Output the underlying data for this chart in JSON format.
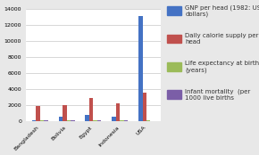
{
  "categories": [
    "Bangladesh",
    "Bolivia",
    "Egypt",
    "Indonesia",
    "USA"
  ],
  "series": [
    {
      "label": "GNP per head (1982: US\ndollars)",
      "color": "#4472C4",
      "values": [
        130,
        570,
        700,
        560,
        13160
      ]
    },
    {
      "label": "Daily calorie supply per\nhead",
      "color": "#C0504D",
      "values": [
        1900,
        2000,
        2900,
        2200,
        3500
      ]
    },
    {
      "label": "Life expectancy at birth\n(years)",
      "color": "#9BBB59",
      "values": [
        50,
        53,
        57,
        55,
        75
      ]
    },
    {
      "label": "Infant mortality  (per\n1000 live births",
      "color": "#7B5EA7",
      "values": [
        132,
        124,
        82,
        87,
        12
      ]
    }
  ],
  "ylim": [
    0,
    14000
  ],
  "yticks": [
    0,
    2000,
    4000,
    6000,
    8000,
    10000,
    12000,
    14000
  ],
  "background_color": "#E8E8E8",
  "plot_bg_color": "#FFFFFF",
  "tick_fontsize": 4.5,
  "legend_fontsize": 5.0,
  "bar_width": 0.15
}
